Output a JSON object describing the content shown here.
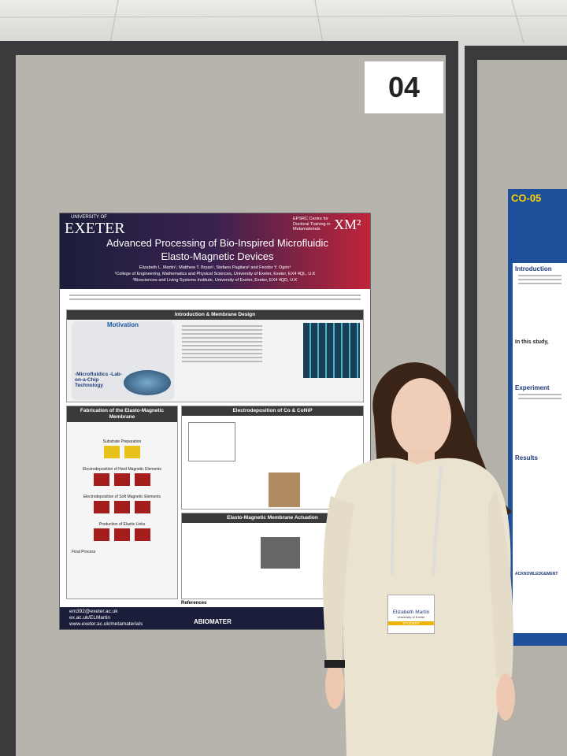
{
  "board_number": "04",
  "poster": {
    "university": "UNIVERSITY OF",
    "logo": "EXETER",
    "centre": "EPSRC Centre for Doctoral Training in Metamaterials",
    "centre_logo": "XM²",
    "title": "Advanced Processing of Bio-Inspired Microfluidic Elasto-Magnetic Devices",
    "authors": "Elizabeth L. Martin¹, Matthew T. Bryan¹, Stefano Pagliara² and Feodor Y. Ogrin¹",
    "affiliations": [
      "¹College of Engineering, Mathematics and Physical Sciences, University of Exeter, Exeter, EX4 4QL, U.K",
      "²Biosciences and Living Systems Institute, University of Exeter, Exeter, EX4 4QD, U.K"
    ],
    "sections": [
      "Introduction & Membrane Design",
      "Fabrication of the Elasto-Magnetic Membrane",
      "Electrodeposition of Co & CoNiP",
      "Elasto-Magnetic Membrane Actuation",
      "References"
    ],
    "motivation": "Motivation",
    "lab_on_chip": "-Microfluidics -Lab-on-a-Chip Technology",
    "steps": [
      "Substrate Preparation",
      "Electrodeposition of Hard Magnetic Elements",
      "Electrodeposition of Soft Magnetic Elements",
      "Production of Elastic Links",
      "Final Process"
    ],
    "contact": [
      "em392@exeter.ac.uk",
      "ex.ac.uk/ELMartin",
      "www.exeter.ac.uk/metamaterials"
    ],
    "sponsor": "ABIOMATER"
  },
  "neighbor_poster": {
    "code": "CO-05",
    "sections": [
      "Introduction",
      "In this study,",
      "Experiment",
      "Results"
    ],
    "acknowledgement": "ACKNOWLEDGEMENT"
  },
  "badge": {
    "name": "Elizabeth Martin",
    "affiliation": "University of Exeter",
    "role": "STUDENT"
  }
}
